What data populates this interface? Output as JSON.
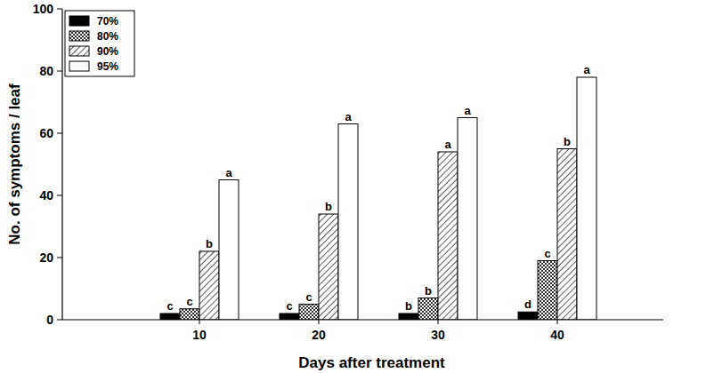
{
  "chart_data": {
    "type": "bar",
    "x_label": "Days after treatment",
    "y_label": "No. of symptoms / leaf",
    "categories": [
      "10",
      "20",
      "30",
      "40"
    ],
    "series": [
      {
        "name": "70%",
        "color": "#000000",
        "values": [
          2,
          2,
          2,
          2.5
        ],
        "letters": [
          "c",
          "c",
          "b",
          "d"
        ]
      },
      {
        "name": "80%",
        "color": "#333333",
        "values": [
          3.5,
          5,
          7,
          19
        ],
        "letters": [
          "c",
          "c",
          "b",
          "c"
        ]
      },
      {
        "name": "90%",
        "color": "#333333",
        "values": [
          22,
          34,
          54,
          55
        ],
        "letters": [
          "b",
          "b",
          "a",
          "b"
        ]
      },
      {
        "name": "95%",
        "color": "#ffffff",
        "values": [
          45,
          63,
          65,
          78
        ],
        "letters": [
          "a",
          "a",
          "a",
          "a"
        ]
      }
    ],
    "ylim": [
      0,
      100
    ],
    "yticks": [
      0,
      20,
      40,
      60,
      80,
      100
    ],
    "grid": false,
    "legend": "top-left"
  }
}
